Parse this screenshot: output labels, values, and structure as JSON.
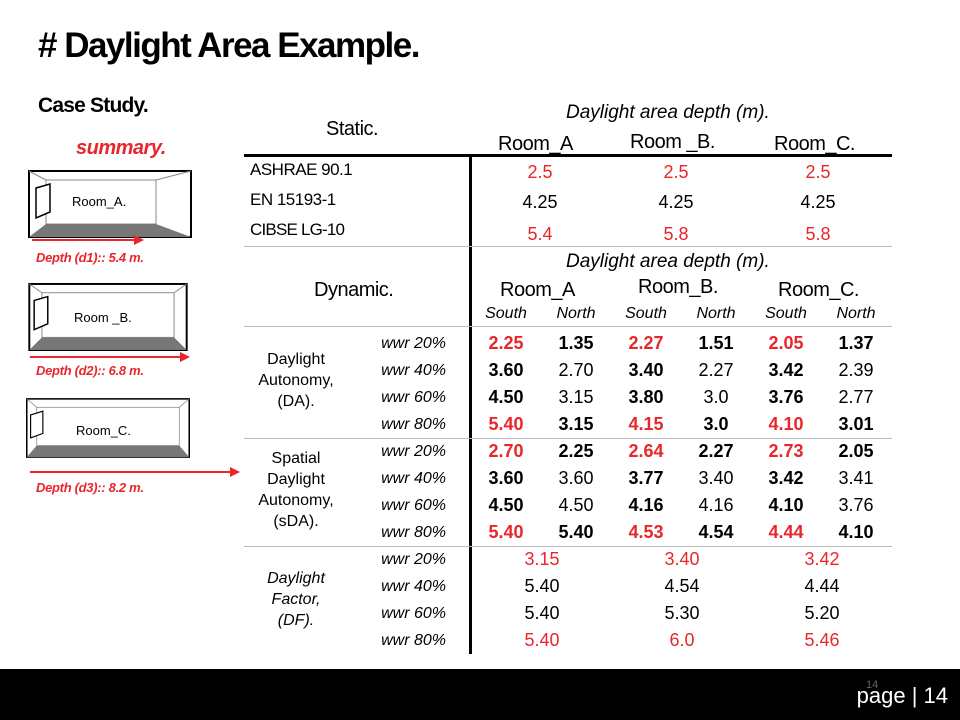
{
  "title": "# Daylight Area Example.",
  "case_study": "Case Study.",
  "summary": "summary.",
  "rooms": [
    {
      "label": "Room_A.",
      "depth": "Depth (d1):: 5.4 m."
    },
    {
      "label": "Room _B.",
      "depth": "Depth (d2):: 6.8 m."
    },
    {
      "label": "Room_C.",
      "depth": "Depth (d3):: 8.2 m."
    }
  ],
  "static": {
    "header": "Static.",
    "depth_title": "Daylight area depth (m).",
    "rooms": [
      "Room_A",
      "Room _B.",
      "Room_C."
    ],
    "rows": [
      {
        "name": "ASHRAE 90.1",
        "values": [
          "2.5",
          "2.5",
          "2.5"
        ],
        "red": true
      },
      {
        "name": "EN 15193-1",
        "values": [
          "4.25",
          "4.25",
          "4.25"
        ],
        "red": false
      },
      {
        "name": "CIBSE LG-10",
        "values": [
          "5.4",
          "5.8",
          "5.8"
        ],
        "red": true
      }
    ]
  },
  "dynamic": {
    "header": "Dynamic.",
    "depth_title": "Daylight area depth (m).",
    "rooms": [
      "Room_A",
      "Room_B.",
      "Room_C."
    ],
    "orientations": [
      "South",
      "North",
      "South",
      "North",
      "South",
      "North"
    ],
    "wwr": [
      "wwr 20%",
      "wwr 40%",
      "wwr 60%",
      "wwr 80%"
    ],
    "groups": [
      {
        "label_lines": [
          "Daylight",
          "Autonomy,",
          "(DA)."
        ],
        "rows": [
          [
            "2.25",
            "1.35",
            "2.27",
            "1.51",
            "2.05",
            "1.37"
          ],
          [
            "3.60",
            "2.70",
            "3.40",
            "2.27",
            "3.42",
            "2.39"
          ],
          [
            "4.50",
            "3.15",
            "3.80",
            "3.0",
            "3.76",
            "2.77"
          ],
          [
            "5.40",
            "3.15",
            "4.15",
            "3.0",
            "4.10",
            "3.01"
          ]
        ]
      },
      {
        "label_lines": [
          "Spatial",
          "Daylight",
          "Autonomy,",
          "(sDA)."
        ],
        "rows": [
          [
            "2.70",
            "2.25",
            "2.64",
            "2.27",
            "2.73",
            "2.05"
          ],
          [
            "3.60",
            "3.60",
            "3.77",
            "3.40",
            "3.42",
            "3.41"
          ],
          [
            "4.50",
            "4.50",
            "4.16",
            "4.16",
            "4.10",
            "3.76"
          ],
          [
            "5.40",
            "5.40",
            "4.53",
            "4.54",
            "4.44",
            "4.10"
          ]
        ]
      }
    ],
    "df": {
      "label_lines": [
        "Daylight",
        "Factor,",
        "(DF)."
      ],
      "rows": [
        [
          "3.15",
          "3.40",
          "3.42"
        ],
        [
          "5.40",
          "4.54",
          "4.44"
        ],
        [
          "5.40",
          "5.30",
          "5.20"
        ],
        [
          "5.40",
          "6.0",
          "5.46"
        ]
      ]
    }
  },
  "footer": {
    "small_number": "14",
    "page": "page | 14"
  },
  "colors": {
    "accent_red": "#e8262b",
    "footer_bg": "#000000"
  }
}
